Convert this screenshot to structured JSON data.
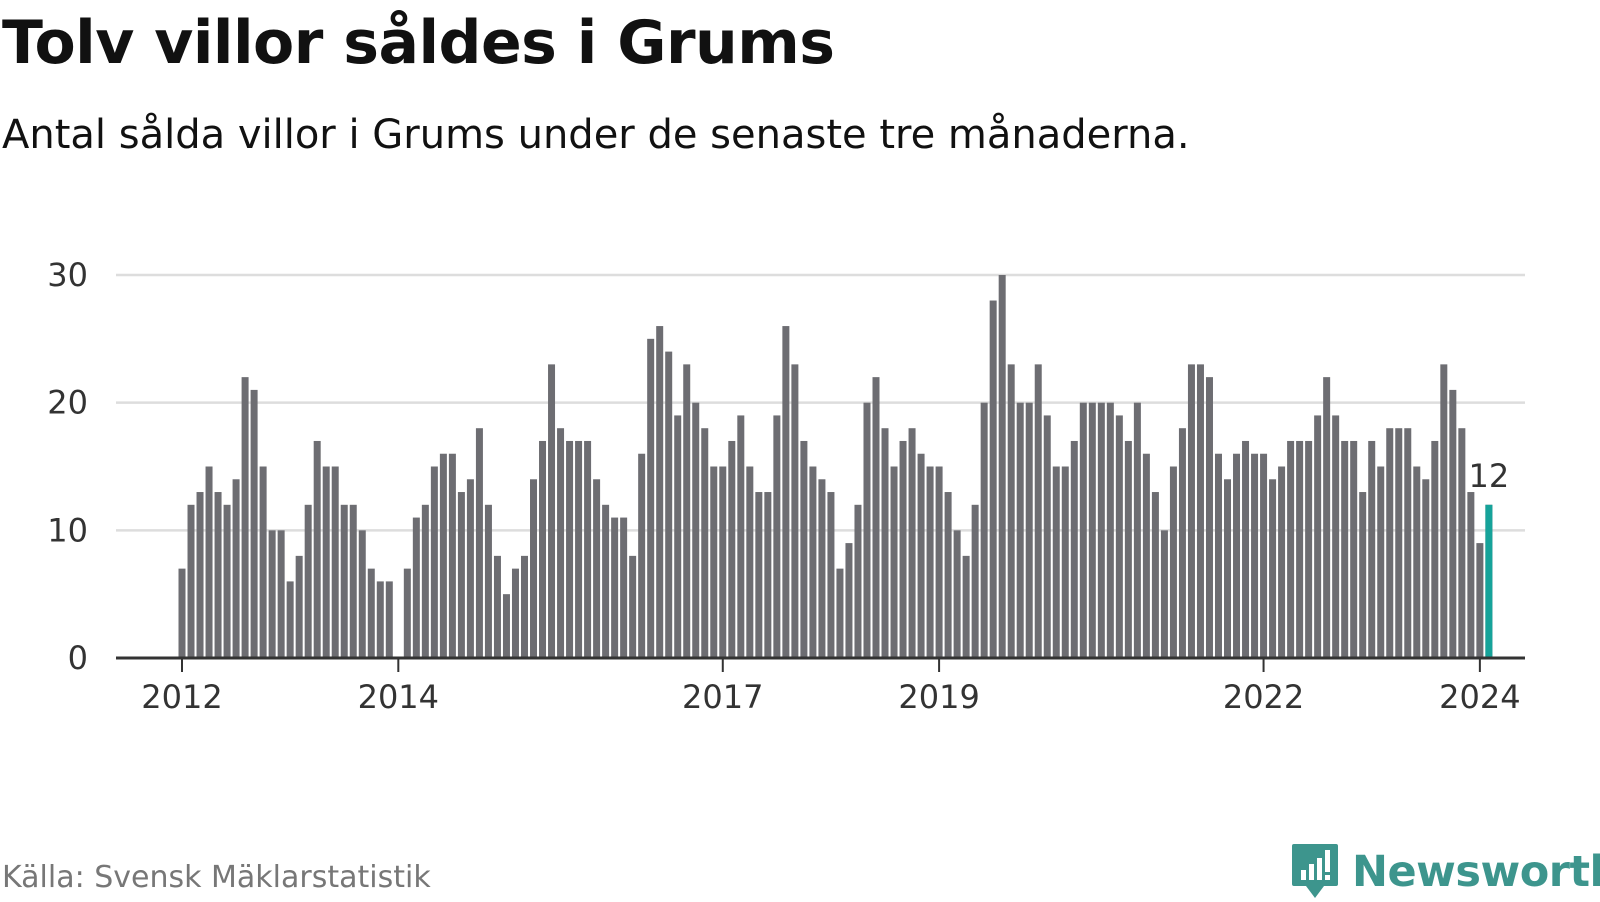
{
  "chart_data": {
    "type": "bar",
    "title": "Tolv villor såldes i Grums",
    "subtitle": "Antal sålda villor i Grums under de senaste tre månaderna.",
    "xlabel": "",
    "ylabel": "",
    "ylim": [
      0,
      30
    ],
    "yticks": [
      0,
      10,
      20,
      30
    ],
    "xticks": [
      {
        "label": "2012",
        "index": 0
      },
      {
        "label": "2014",
        "index": 24
      },
      {
        "label": "2017",
        "index": 60
      },
      {
        "label": "2019",
        "index": 84
      },
      {
        "label": "2022",
        "index": 120
      },
      {
        "label": "2024",
        "index": 144
      }
    ],
    "start": "2012-01",
    "values": [
      7,
      12,
      13,
      15,
      13,
      12,
      14,
      22,
      21,
      15,
      10,
      10,
      6,
      8,
      12,
      17,
      15,
      15,
      12,
      12,
      10,
      7,
      6,
      6,
      0,
      7,
      11,
      12,
      15,
      16,
      16,
      13,
      14,
      18,
      12,
      8,
      5,
      7,
      8,
      14,
      17,
      23,
      18,
      17,
      17,
      17,
      14,
      12,
      11,
      11,
      8,
      16,
      25,
      26,
      24,
      19,
      23,
      20,
      18,
      15,
      15,
      17,
      19,
      15,
      13,
      13,
      19,
      26,
      23,
      17,
      15,
      14,
      13,
      7,
      9,
      12,
      20,
      22,
      18,
      15,
      17,
      18,
      16,
      15,
      15,
      13,
      10,
      8,
      12,
      20,
      28,
      30,
      23,
      20,
      20,
      23,
      19,
      15,
      15,
      17,
      20,
      20,
      20,
      20,
      19,
      17,
      20,
      16,
      13,
      10,
      15,
      18,
      23,
      23,
      22,
      16,
      14,
      16,
      17,
      16,
      16,
      14,
      15,
      17,
      17,
      17,
      19,
      22,
      19,
      17,
      17,
      13,
      17,
      15,
      18,
      18,
      18,
      15,
      14,
      17,
      23,
      21,
      18,
      13,
      9,
      12
    ],
    "highlight_index": 145,
    "highlight_label": "12",
    "colors": {
      "bar": "#6d6d72",
      "highlight": "#16a39a",
      "grid": "#dddddd",
      "axis": "#333333"
    },
    "source": "Källa: Svensk Mäklarstatistik"
  },
  "logo": {
    "text": "Newsworthy",
    "icon": "newsworthy-logo-icon"
  }
}
